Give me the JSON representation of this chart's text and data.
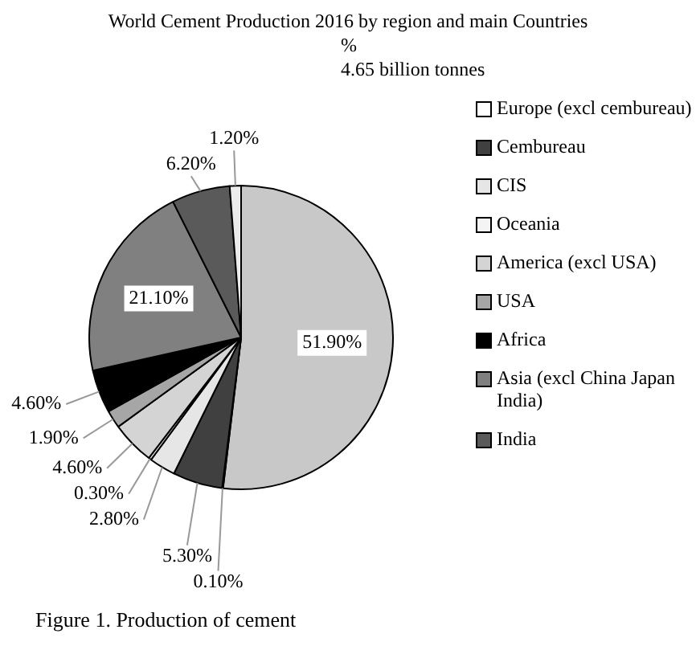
{
  "chart_data": {
    "type": "pie",
    "title": "World Cement Production 2016 by region and main Countries",
    "subtitle": "%",
    "annotations": [
      "4.65 billion tonnes",
      "Figure 1. Production of cement"
    ],
    "categories": [
      null,
      "Europe (excl cembureau)",
      "Cembureau",
      "CIS",
      "Oceania",
      "America (excl USA)",
      "USA",
      "Africa",
      "Asia (excl China Japan India)",
      "India",
      null
    ],
    "values": [
      51.9,
      0.1,
      5.3,
      2.8,
      0.3,
      4.6,
      1.9,
      4.6,
      21.1,
      6.2,
      1.2
    ],
    "value_labels": [
      "51.90%",
      "0.10%",
      "5.30%",
      "2.80%",
      "0.30%",
      "4.60%",
      "1.90%",
      "4.60%",
      "21.10%",
      "6.20%",
      "1.20%"
    ],
    "colors": [
      "#c8c8c8",
      "#ffffff",
      "#404040",
      "#e6e6e6",
      "#f4f4f4",
      "#d4d4d4",
      "#a6a6a6",
      "#000000",
      "#808080",
      "#5a5a5a",
      "#ececec"
    ],
    "legend": "right"
  }
}
